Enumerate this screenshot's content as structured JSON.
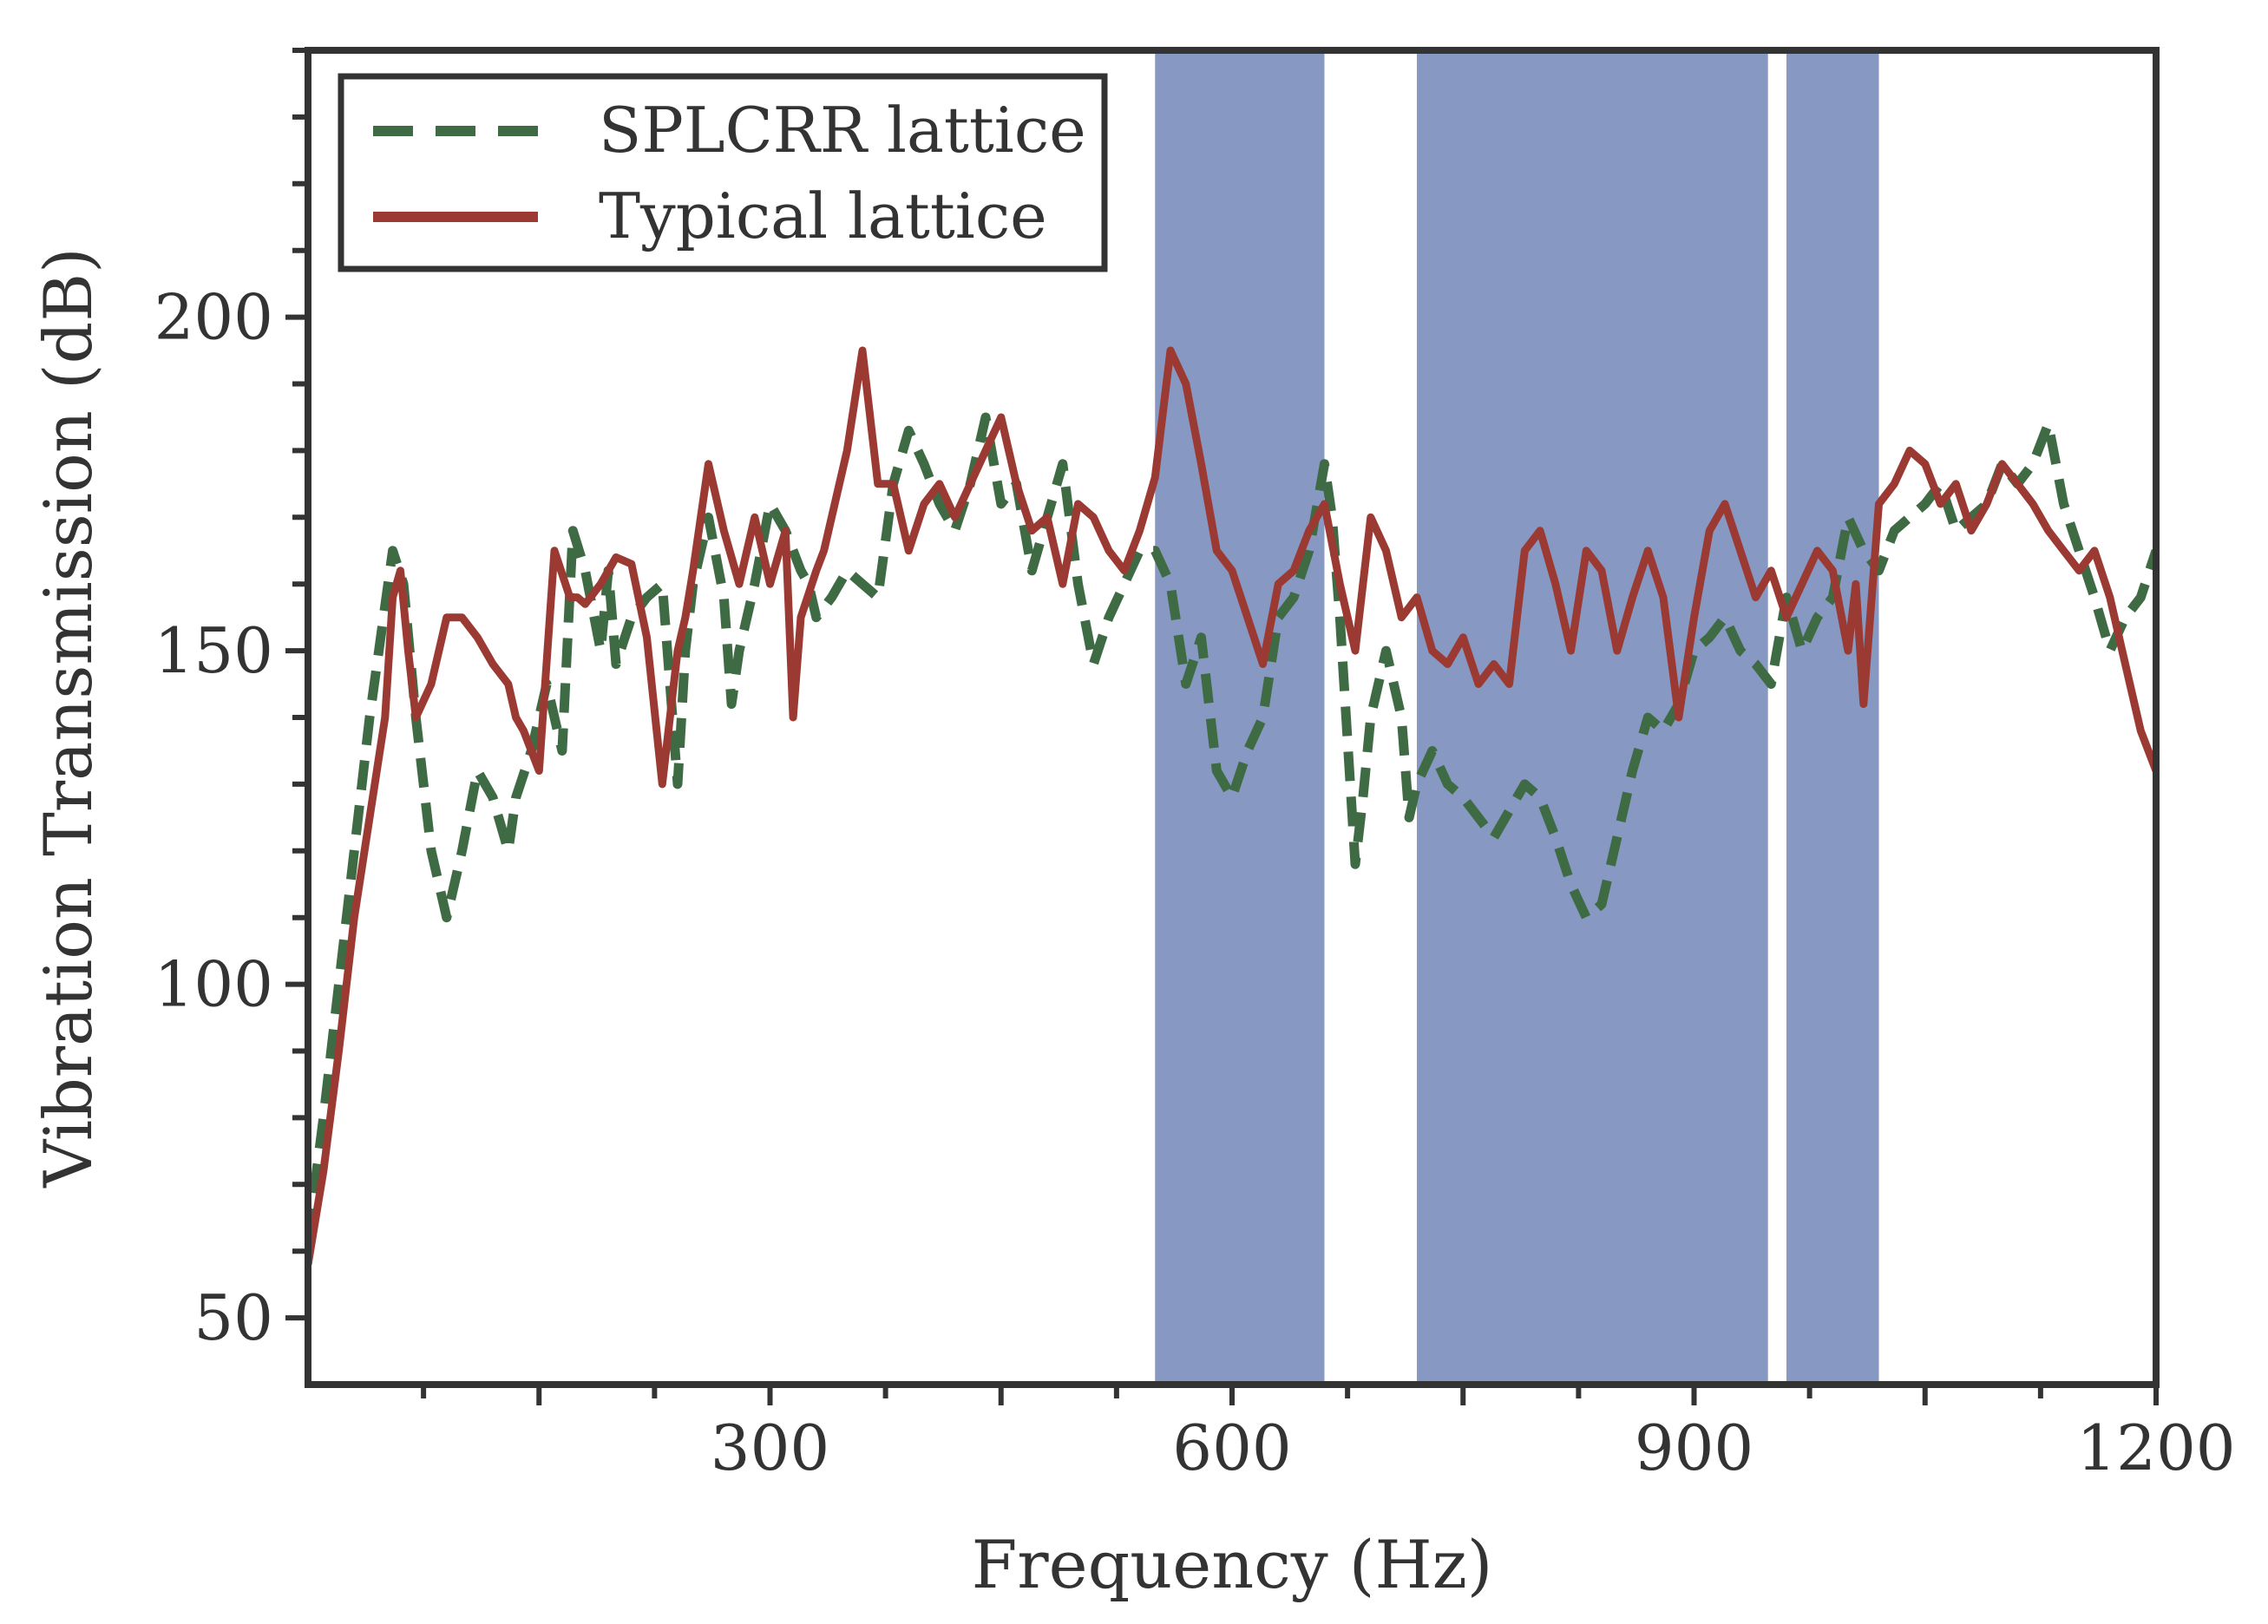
{
  "chart_data": {
    "type": "line",
    "title": "",
    "xlabel": "Frequency (Hz)",
    "ylabel": "Vibration Transmission (dB)",
    "xlim": [
      0,
      1200
    ],
    "ylim": [
      40,
      240
    ],
    "x_ticks": [
      300,
      600,
      900,
      1200
    ],
    "y_ticks": [
      50,
      100,
      150,
      200
    ],
    "grid": false,
    "legend_position": "top-left",
    "band_color": "#8798c2",
    "bands": [
      [
        550,
        660
      ],
      [
        720,
        948
      ],
      [
        960,
        1020
      ]
    ],
    "series": [
      {
        "name": "SPLCRR lattice",
        "color": "#3f6b44",
        "style": "dashed",
        "x": [
          0,
          10,
          25,
          40,
          55,
          62,
          70,
          80,
          90,
          100,
          110,
          120,
          130,
          135,
          145,
          155,
          165,
          172,
          180,
          190,
          195,
          200,
          210,
          220,
          230,
          240,
          245,
          250,
          260,
          270,
          275,
          280,
          290,
          300,
          310,
          320,
          325,
          330,
          340,
          350,
          360,
          370,
          380,
          390,
          400,
          410,
          420,
          430,
          440,
          450,
          460,
          470,
          480,
          490,
          500,
          510,
          520,
          530,
          540,
          550,
          560,
          570,
          580,
          590,
          600,
          610,
          620,
          630,
          640,
          650,
          660,
          665,
          670,
          680,
          685,
          690,
          700,
          710,
          715,
          720,
          730,
          740,
          750,
          760,
          770,
          780,
          790,
          800,
          810,
          820,
          830,
          840,
          850,
          860,
          870,
          880,
          890,
          900,
          910,
          920,
          930,
          940,
          950,
          960,
          970,
          980,
          990,
          1000,
          1010,
          1020,
          1030,
          1040,
          1050,
          1060,
          1070,
          1080,
          1090,
          1100,
          1110,
          1120,
          1130,
          1140,
          1150,
          1160,
          1170,
          1180,
          1190,
          1200
        ],
        "y": [
          62,
          80,
          110,
          140,
          165,
          160,
          140,
          120,
          110,
          120,
          132,
          128,
          120,
          128,
          135,
          145,
          135,
          168,
          162,
          150,
          162,
          148,
          155,
          158,
          160,
          130,
          150,
          160,
          170,
          158,
          142,
          150,
          160,
          172,
          168,
          162,
          160,
          155,
          158,
          162,
          160,
          158,
          175,
          183,
          178,
          172,
          168,
          175,
          185,
          172,
          175,
          162,
          170,
          178,
          160,
          148,
          155,
          160,
          165,
          165,
          160,
          145,
          152,
          132,
          128,
          135,
          140,
          155,
          158,
          165,
          178,
          170,
          155,
          118,
          128,
          140,
          150,
          140,
          125,
          130,
          135,
          130,
          128,
          125,
          122,
          126,
          130,
          128,
          122,
          115,
          110,
          112,
          122,
          132,
          140,
          138,
          142,
          150,
          152,
          155,
          150,
          148,
          145,
          158,
          150,
          155,
          158,
          170,
          165,
          162,
          168,
          170,
          172,
          175,
          168,
          170,
          172,
          178,
          175,
          178,
          184,
          172,
          165,
          158,
          150,
          155,
          158,
          165
        ]
      },
      {
        "name": "Typical lattice",
        "color": "#9b3a33",
        "style": "solid",
        "x": [
          0,
          10,
          20,
          30,
          40,
          50,
          55,
          60,
          65,
          70,
          80,
          85,
          90,
          100,
          110,
          120,
          130,
          135,
          140,
          150,
          160,
          170,
          175,
          180,
          190,
          200,
          210,
          220,
          230,
          240,
          245,
          250,
          260,
          270,
          280,
          290,
          300,
          310,
          315,
          320,
          330,
          335,
          340,
          350,
          360,
          370,
          380,
          390,
          400,
          410,
          420,
          430,
          440,
          450,
          460,
          470,
          480,
          490,
          500,
          510,
          520,
          530,
          540,
          550,
          560,
          570,
          580,
          590,
          600,
          610,
          620,
          630,
          640,
          650,
          660,
          670,
          680,
          690,
          700,
          710,
          720,
          730,
          740,
          750,
          760,
          770,
          780,
          790,
          800,
          810,
          820,
          830,
          840,
          850,
          860,
          870,
          880,
          890,
          900,
          910,
          920,
          930,
          940,
          950,
          960,
          970,
          980,
          990,
          1000,
          1005,
          1010,
          1020,
          1030,
          1040,
          1050,
          1060,
          1070,
          1080,
          1090,
          1100,
          1110,
          1120,
          1130,
          1140,
          1150,
          1160,
          1170,
          1180,
          1190,
          1200
        ],
        "y": [
          58,
          72,
          90,
          110,
          125,
          140,
          158,
          162,
          150,
          140,
          145,
          150,
          155,
          155,
          152,
          148,
          145,
          140,
          138,
          132,
          165,
          158,
          158,
          157,
          160,
          164,
          163,
          152,
          130,
          150,
          155,
          162,
          178,
          168,
          160,
          170,
          160,
          168,
          140,
          155,
          162,
          165,
          170,
          180,
          195,
          175,
          175,
          165,
          172,
          175,
          170,
          175,
          180,
          185,
          175,
          168,
          170,
          160,
          172,
          170,
          165,
          162,
          168,
          176,
          195,
          190,
          178,
          165,
          162,
          155,
          148,
          160,
          162,
          168,
          172,
          160,
          150,
          170,
          165,
          155,
          158,
          150,
          148,
          152,
          145,
          148,
          145,
          165,
          168,
          160,
          150,
          165,
          162,
          150,
          158,
          165,
          158,
          140,
          155,
          168,
          172,
          165,
          158,
          162,
          155,
          160,
          165,
          162,
          150,
          160,
          142,
          172,
          175,
          180,
          178,
          172,
          175,
          168,
          172,
          178,
          175,
          172,
          168,
          165,
          162,
          165,
          158,
          148,
          138,
          132
        ]
      }
    ]
  }
}
